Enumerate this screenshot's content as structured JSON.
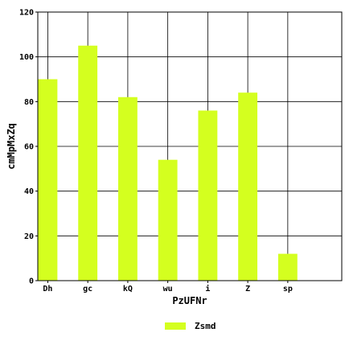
{
  "chart_data": {
    "type": "bar",
    "categories": [
      "Dh",
      "gc",
      "kQ",
      "wu",
      "i",
      "Z",
      "sp"
    ],
    "series": [
      {
        "name": "Zsmd",
        "values": [
          90,
          105,
          82,
          54,
          76,
          84,
          12
        ],
        "color": "#d4ff1f"
      }
    ],
    "xlabel": "PzUFNr",
    "ylabel": "cmMpMxZq",
    "ylim": [
      0,
      120
    ],
    "yticks": [
      0,
      20,
      40,
      60,
      80,
      100,
      120
    ],
    "grid": true,
    "legend": {
      "position": "bottom-center"
    }
  }
}
